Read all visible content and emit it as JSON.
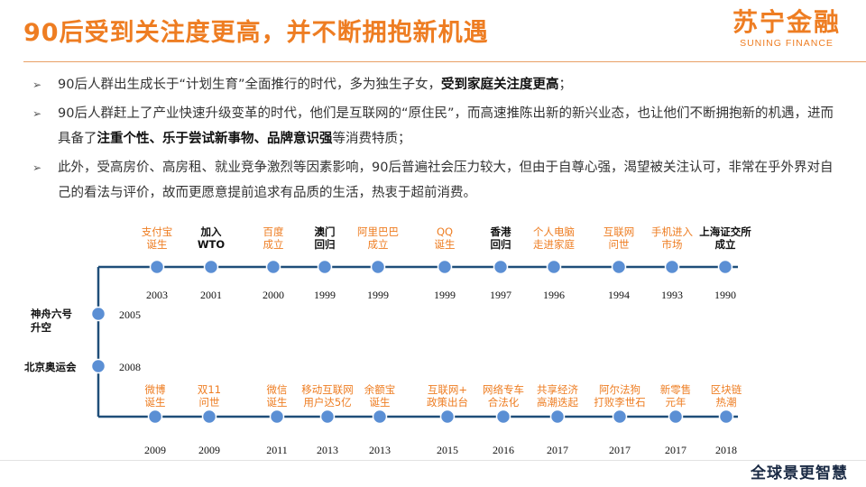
{
  "title": "90后受到关注度更高，并不断拥抱新机遇",
  "logo": {
    "cn": "苏宁金融",
    "en": "SUNING FINANCE"
  },
  "bullets": [
    {
      "pre": "90后人群出生成长于“计划生育”全面推行的时代，多为独生子女，",
      "bold": "受到家庭关注度更高",
      "post": "；"
    },
    {
      "pre": "90后人群赶上了产业快速升级变革的时代，他们是互联网的“原住民”，而高速推陈出新的新兴业态，也让他们不断拥抱新的机遇，进而具备了",
      "bold": "注重个性、乐于尝试新事物、品牌意识强",
      "post": "等消费特质；"
    },
    {
      "pre": "此外，受高房价、高房租、就业竞争激烈等因素影响，90后普遍社会压力较大，但由于自尊心强，渴望被关注认可，非常在乎外界对自己的看法与评价，故而更愿意提前追求有品质的生活，热衷于超前消费。",
      "bold": "",
      "post": ""
    }
  ],
  "timeline_top": [
    {
      "label": "支付宝\n诞生",
      "year": "2003",
      "color": "orange"
    },
    {
      "label": "加入\nWTO",
      "year": "2001",
      "color": "black"
    },
    {
      "label": "百度\n成立",
      "year": "2000",
      "color": "orange"
    },
    {
      "label": "澳门\n回归",
      "year": "1999",
      "color": "black"
    },
    {
      "label": "阿里巴巴\n成立",
      "year": "1999",
      "color": "orange"
    },
    {
      "label": "QQ\n诞生",
      "year": "1999",
      "color": "orange"
    },
    {
      "label": "香港\n回归",
      "year": "1997",
      "color": "black"
    },
    {
      "label": "个人电脑\n走进家庭",
      "year": "1996",
      "color": "orange"
    },
    {
      "label": "互联网\n问世",
      "year": "1994",
      "color": "orange"
    },
    {
      "label": "手机进入\n市场",
      "year": "1993",
      "color": "orange"
    },
    {
      "label": "上海证交所\n成立",
      "year": "1990",
      "color": "black"
    }
  ],
  "timeline_side": [
    {
      "label": "神舟六号\n升空",
      "year": "2005"
    },
    {
      "label": "北京奥运会",
      "year": "2008"
    }
  ],
  "timeline_bottom": [
    {
      "label": "微博\n诞生",
      "year": "2009",
      "color": "orange"
    },
    {
      "label": "双11\n问世",
      "year": "2009",
      "color": "orange"
    },
    {
      "label": "微信\n诞生",
      "year": "2011",
      "color": "orange"
    },
    {
      "label": "移动互联网\n用户达5亿",
      "year": "2013",
      "color": "orange"
    },
    {
      "label": "余额宝\n诞生",
      "year": "2013",
      "color": "orange"
    },
    {
      "label": "互联网+\n政策出台",
      "year": "2015",
      "color": "orange"
    },
    {
      "label": "网络专车\n合法化",
      "year": "2016",
      "color": "orange"
    },
    {
      "label": "共享经济\n高潮迭起",
      "year": "2017",
      "color": "orange"
    },
    {
      "label": "阿尔法狗\n打败李世石",
      "year": "2017",
      "color": "orange"
    },
    {
      "label": "新零售\n元年",
      "year": "2017",
      "color": "orange"
    },
    {
      "label": "区块链\n热潮",
      "year": "2018",
      "color": "orange"
    }
  ],
  "watermark": "全球景更智慧",
  "colors": {
    "accent": "#ee7d22",
    "line": "#1f4e79",
    "dot": "#5b8fd4"
  }
}
